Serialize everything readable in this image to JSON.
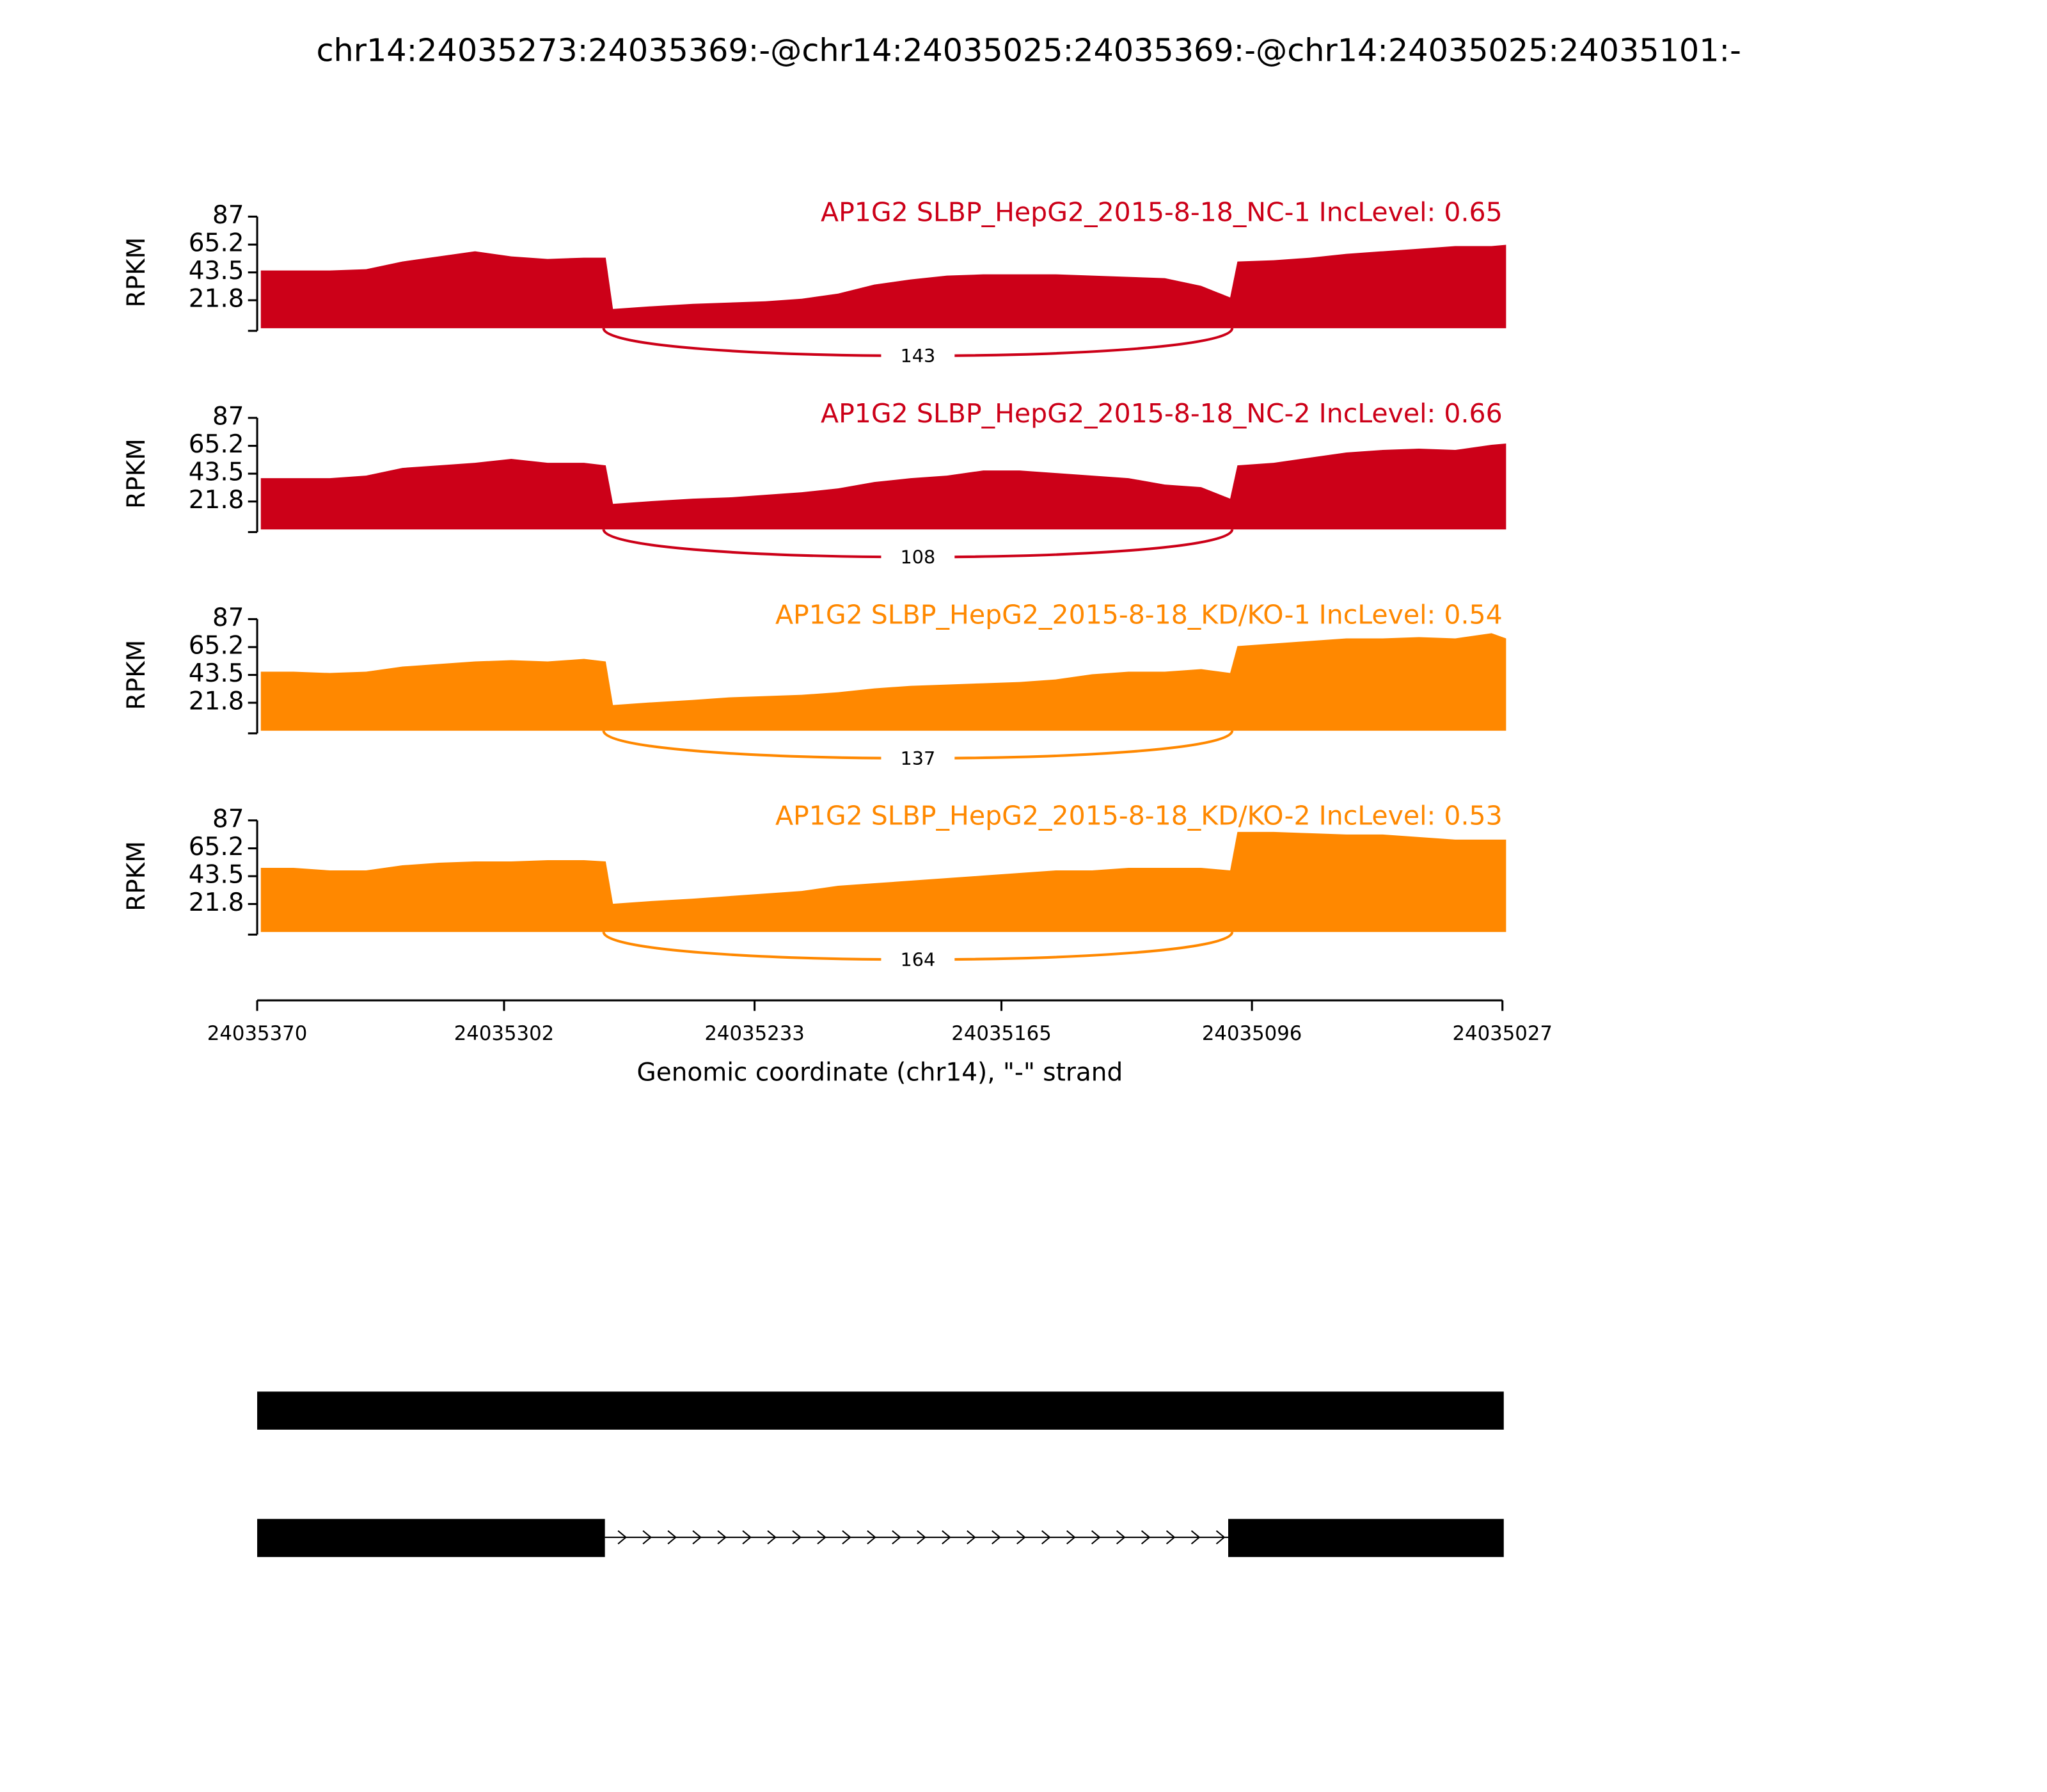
{
  "title": "chr14:24035273:24035369:-@chr14:24035025:24035369:-@chr14:24035025:24035101:-",
  "chart_data": [
    {
      "type": "area",
      "title": "AP1G2 SLBP_HepG2_2015-8-18_NC-1 IncLevel: 0.65",
      "color": "#cc0018",
      "ylabel": "RPKM",
      "ylim": [
        0,
        87
      ],
      "yticks": [
        21.8,
        43.5,
        65.2,
        87
      ],
      "xlim": [
        24035370,
        24035027
      ],
      "x": [
        24035369,
        24035360,
        24035350,
        24035340,
        24035330,
        24035320,
        24035310,
        24035300,
        24035290,
        24035280,
        24035274,
        24035272,
        24035262,
        24035250,
        24035240,
        24035230,
        24035220,
        24035210,
        24035200,
        24035190,
        24035180,
        24035170,
        24035160,
        24035150,
        24035140,
        24035130,
        24035120,
        24035110,
        24035102,
        24035100,
        24035090,
        24035080,
        24035070,
        24035060,
        24035050,
        24035040,
        24035030,
        24035026
      ],
      "values": [
        45,
        45,
        45,
        46,
        52,
        56,
        60,
        56,
        54,
        55,
        55,
        15,
        17,
        19,
        20,
        21,
        23,
        27,
        34,
        38,
        41,
        42,
        42,
        42,
        41,
        40,
        39,
        33,
        24,
        52,
        53,
        55,
        58,
        60,
        62,
        64,
        64,
        65
      ],
      "junction": 143
    },
    {
      "type": "area",
      "title": "AP1G2 SLBP_HepG2_2015-8-18_NC-2 IncLevel: 0.66",
      "color": "#cc0018",
      "ylabel": "RPKM",
      "ylim": [
        0,
        87
      ],
      "yticks": [
        21.8,
        43.5,
        65.2,
        87
      ],
      "xlim": [
        24035370,
        24035027
      ],
      "x": [
        24035369,
        24035360,
        24035350,
        24035340,
        24035330,
        24035320,
        24035310,
        24035300,
        24035290,
        24035280,
        24035274,
        24035272,
        24035262,
        24035250,
        24035240,
        24035230,
        24035220,
        24035210,
        24035200,
        24035190,
        24035180,
        24035170,
        24035160,
        24035150,
        24035140,
        24035130,
        24035120,
        24035110,
        24035102,
        24035100,
        24035090,
        24035080,
        24035070,
        24035060,
        24035050,
        24035040,
        24035030,
        24035026
      ],
      "values": [
        40,
        40,
        40,
        42,
        48,
        50,
        52,
        55,
        52,
        52,
        50,
        20,
        22,
        24,
        25,
        27,
        29,
        32,
        37,
        40,
        42,
        46,
        46,
        44,
        42,
        40,
        35,
        33,
        24,
        50,
        52,
        56,
        60,
        62,
        63,
        62,
        66,
        67
      ],
      "junction": 108
    },
    {
      "type": "area",
      "title": "AP1G2 SLBP_HepG2_2015-8-18_KD/KO-1 IncLevel: 0.54",
      "color": "#ff8800",
      "ylabel": "RPKM",
      "ylim": [
        0,
        87
      ],
      "yticks": [
        21.8,
        43.5,
        65.2,
        87
      ],
      "xlim": [
        24035370,
        24035027
      ],
      "x": [
        24035369,
        24035360,
        24035350,
        24035340,
        24035330,
        24035320,
        24035310,
        24035300,
        24035290,
        24035280,
        24035274,
        24035272,
        24035262,
        24035250,
        24035240,
        24035230,
        24035220,
        24035210,
        24035200,
        24035190,
        24035180,
        24035170,
        24035160,
        24035150,
        24035140,
        24035130,
        24035120,
        24035110,
        24035102,
        24035100,
        24035090,
        24035080,
        24035070,
        24035060,
        24035050,
        24035040,
        24035030,
        24035026
      ],
      "values": [
        46,
        46,
        45,
        46,
        50,
        52,
        54,
        55,
        54,
        56,
        54,
        20,
        22,
        24,
        26,
        27,
        28,
        30,
        33,
        35,
        36,
        37,
        38,
        40,
        44,
        46,
        46,
        48,
        45,
        66,
        68,
        70,
        72,
        72,
        73,
        72,
        76,
        72
      ],
      "junction": 137
    },
    {
      "type": "area",
      "title": "AP1G2 SLBP_HepG2_2015-8-18_KD/KO-2 IncLevel: 0.53",
      "color": "#ff8800",
      "ylabel": "RPKM",
      "ylim": [
        0,
        87
      ],
      "yticks": [
        21.8,
        43.5,
        65.2,
        87
      ],
      "xlim": [
        24035370,
        24035027
      ],
      "x": [
        24035369,
        24035360,
        24035350,
        24035340,
        24035330,
        24035320,
        24035310,
        24035300,
        24035290,
        24035280,
        24035274,
        24035272,
        24035262,
        24035250,
        24035240,
        24035230,
        24035220,
        24035210,
        24035200,
        24035190,
        24035180,
        24035170,
        24035160,
        24035150,
        24035140,
        24035130,
        24035120,
        24035110,
        24035102,
        24035100,
        24035090,
        24035080,
        24035070,
        24035060,
        24035050,
        24035040,
        24035030,
        24035026
      ],
      "values": [
        50,
        50,
        48,
        48,
        52,
        54,
        55,
        55,
        56,
        56,
        55,
        22,
        24,
        26,
        28,
        30,
        32,
        36,
        38,
        40,
        42,
        44,
        46,
        48,
        48,
        50,
        50,
        50,
        48,
        78,
        78,
        77,
        76,
        76,
        74,
        72,
        72,
        72
      ],
      "junction": 164,
      "xticks": [
        24035370,
        24035302,
        24035233,
        24035165,
        24035096,
        24035027
      ],
      "xlabel": "Genomic coordinate (chr14), \"-\" strand"
    }
  ]
}
